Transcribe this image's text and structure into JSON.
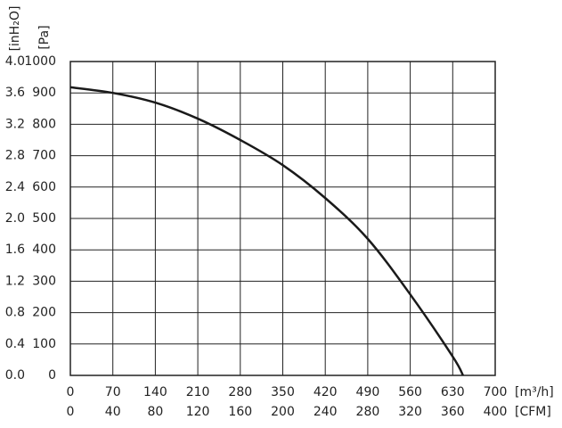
{
  "chart_data": {
    "type": "line",
    "x": [
      0,
      70,
      140,
      210,
      280,
      350,
      420,
      490,
      560,
      630,
      647
    ],
    "values": [
      918,
      900,
      869,
      818,
      750,
      670,
      565,
      435,
      258,
      60,
      0
    ],
    "color": "#1a1a1a",
    "xlabel": "[m³/h]",
    "x2label": "[CFM]",
    "ylabel": "[Pa]",
    "y2label": "[inH₂O]",
    "xlim": [
      0,
      700
    ],
    "xticks": [
      0,
      70,
      140,
      210,
      280,
      350,
      420,
      490,
      560,
      630,
      700
    ],
    "x2lim": [
      0,
      400
    ],
    "x2ticks": [
      0,
      40,
      80,
      120,
      160,
      200,
      240,
      280,
      320,
      360,
      400
    ],
    "ylim": [
      0,
      1000
    ],
    "yticks": [
      0,
      100,
      200,
      300,
      400,
      500,
      600,
      700,
      800,
      900,
      1000
    ],
    "y2lim": [
      0,
      4
    ],
    "y2ticks": [
      {
        "value": 0,
        "label": "0.0"
      },
      0.4,
      0.8,
      1.2,
      1.6,
      {
        "value": 2,
        "label": "2.0"
      },
      2.4,
      2.8,
      3.2,
      3.6,
      {
        "value": 4,
        "label": "4.0"
      }
    ],
    "grid": true
  }
}
